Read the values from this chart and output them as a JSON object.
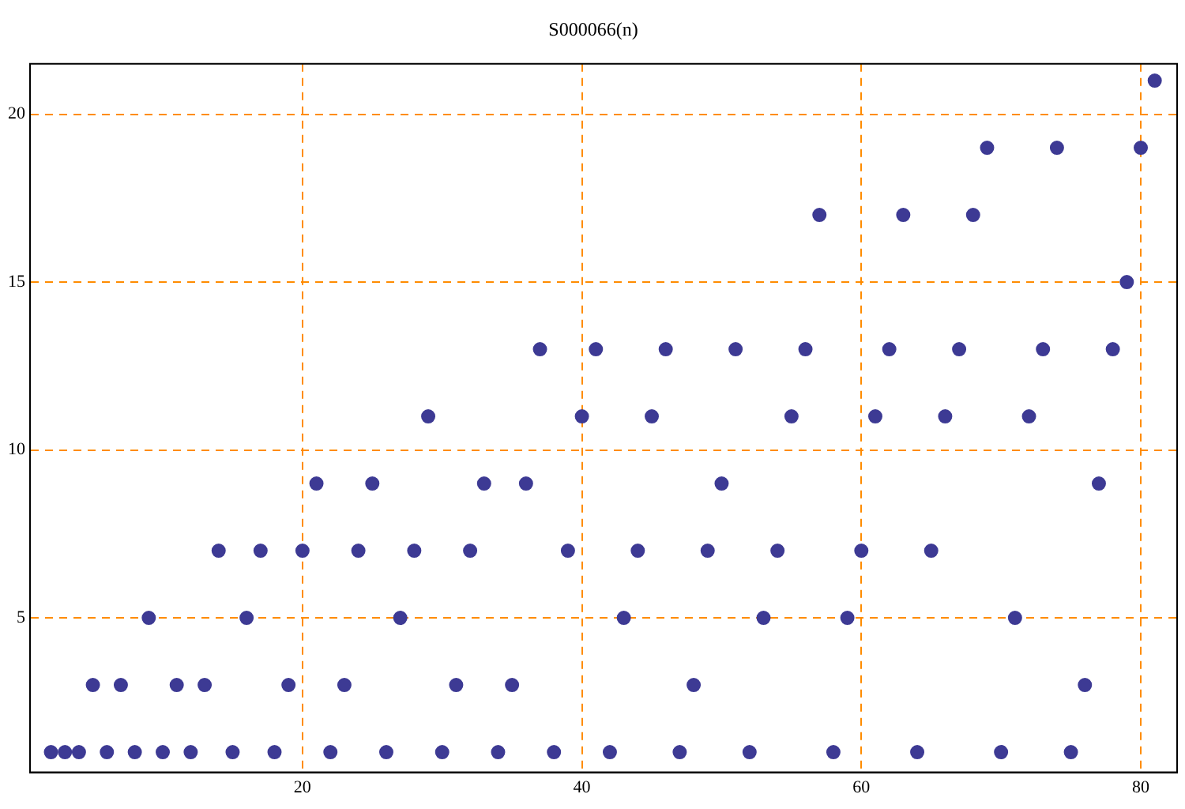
{
  "chart_data": {
    "type": "scatter",
    "title": "S000066(n)",
    "x": [
      2,
      3,
      4,
      5,
      6,
      7,
      8,
      9,
      10,
      11,
      12,
      13,
      14,
      15,
      16,
      17,
      18,
      19,
      20,
      21,
      22,
      23,
      24,
      25,
      26,
      27,
      28,
      29,
      30,
      31,
      32,
      33,
      34,
      35,
      36,
      37,
      38,
      39,
      40,
      41,
      42,
      43,
      44,
      45,
      46,
      47,
      48,
      49,
      50,
      51,
      52,
      53,
      54,
      55,
      56,
      57,
      58,
      59,
      60,
      61,
      62,
      63,
      64,
      65,
      66,
      67,
      68,
      69,
      70,
      71,
      72,
      73,
      74,
      75,
      76,
      77,
      78,
      79,
      80,
      81
    ],
    "series": [
      {
        "color": "#3d3a94",
        "values": [
          1,
          1,
          1,
          3,
          1,
          3,
          1,
          5,
          1,
          3,
          1,
          3,
          7,
          1,
          5,
          7,
          1,
          3,
          7,
          9,
          1,
          3,
          7,
          9,
          1,
          5,
          7,
          11,
          1,
          3,
          7,
          9,
          1,
          3,
          9,
          13,
          1,
          7,
          11,
          13,
          1,
          5,
          7,
          11,
          13,
          1,
          3,
          7,
          9,
          13,
          1,
          5,
          7,
          11,
          13,
          17,
          1,
          5,
          7,
          11,
          13,
          17,
          1,
          7,
          11,
          13,
          17,
          19,
          1,
          5,
          11,
          13,
          19,
          1,
          3,
          9,
          13,
          15,
          19,
          21
        ]
      }
    ],
    "xlim": [
      0.5,
      82.6
    ],
    "ylim": [
      0.4,
      21.5
    ],
    "xticks": [
      20,
      40,
      60,
      80
    ],
    "yticks": [
      5,
      10,
      15,
      20
    ],
    "grid": true,
    "legend": false,
    "marker": "circle"
  }
}
